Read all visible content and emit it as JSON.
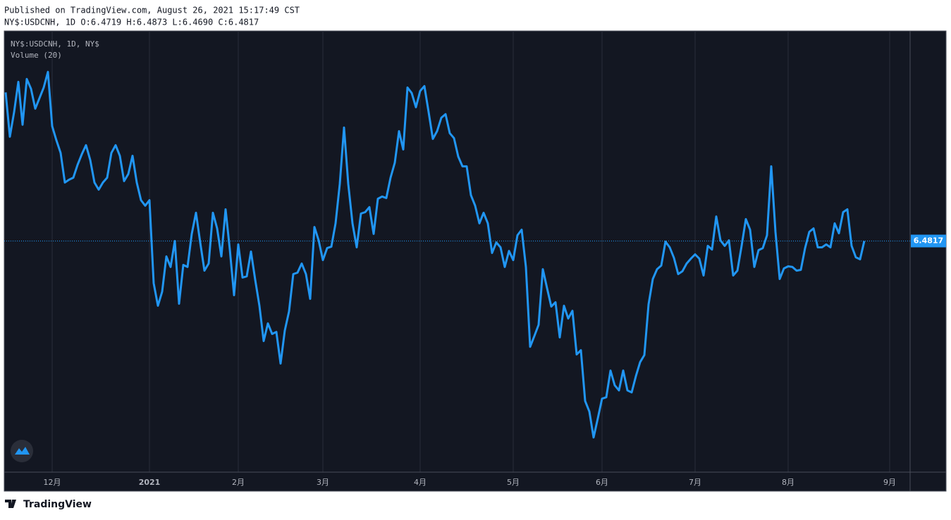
{
  "header": {
    "published": "Published on TradingView.com, August 26, 2021 15:17:49 CST",
    "ohlc": "NY$:USDCNH, 1D O:6.4719 H:6.4873 L:6.4690 C:6.4817"
  },
  "chart_data": {
    "type": "line",
    "indicator": "Volume (20)",
    "categories": [
      null,
      null,
      null,
      null,
      null,
      null,
      null,
      null,
      null,
      null,
      null,
      "12月",
      null,
      null,
      null,
      null,
      null,
      null,
      null,
      null,
      null,
      null,
      null,
      null,
      null,
      null,
      null,
      null,
      null,
      null,
      null,
      null,
      null,
      null,
      "2021",
      null,
      null,
      null,
      null,
      null,
      null,
      null,
      null,
      null,
      null,
      null,
      null,
      null,
      null,
      null,
      null,
      null,
      null,
      null,
      null,
      "2月",
      null,
      null,
      null,
      null,
      null,
      null,
      null,
      null,
      null,
      null,
      null,
      null,
      null,
      null,
      null,
      null,
      null,
      null,
      null,
      "3月",
      null,
      null,
      null,
      null,
      null,
      null,
      null,
      null,
      null,
      null,
      null,
      null,
      null,
      null,
      null,
      null,
      null,
      null,
      null,
      null,
      null,
      null,
      "4月",
      null,
      null,
      null,
      null,
      null,
      null,
      null,
      null,
      null,
      null,
      null,
      null,
      null,
      null,
      null,
      null,
      null,
      null,
      null,
      null,
      null,
      "5月",
      null,
      null,
      null,
      null,
      null,
      null,
      null,
      null,
      null,
      null,
      null,
      null,
      null,
      null,
      null,
      null,
      null,
      null,
      null,
      null,
      "6月",
      null,
      null,
      null,
      null,
      null,
      null,
      null,
      null,
      null,
      null,
      null,
      null,
      null,
      null,
      null,
      null,
      null,
      null,
      null,
      null,
      null,
      "7月",
      null,
      null,
      null,
      null,
      null,
      null,
      null,
      null,
      null,
      null,
      null,
      null,
      null,
      null,
      null,
      null,
      null,
      null,
      null,
      null,
      null,
      "8月",
      null,
      null,
      null,
      null,
      null,
      null,
      null,
      null,
      null,
      null,
      null,
      null,
      null,
      null,
      null,
      null,
      null,
      null,
      null,
      null,
      null,
      null,
      null,
      "9月"
    ],
    "series": [
      {
        "name": "NY$:USDCNH, 1D, NY$",
        "color": "#2196f3",
        "values": [
          6.576,
          6.5479,
          6.5635,
          6.5827,
          6.5555,
          6.5845,
          6.5783,
          6.5657,
          6.5724,
          6.5791,
          6.589,
          6.5546,
          6.5456,
          6.5376,
          6.5188,
          6.5206,
          6.5219,
          6.53,
          6.5367,
          6.5425,
          6.5331,
          6.5188,
          6.5143,
          6.5188,
          6.5219,
          6.5376,
          6.5425,
          6.5358,
          6.5197,
          6.5242,
          6.5358,
          6.5188,
          6.5076,
          6.5041,
          6.5076,
          6.4549,
          6.4406,
          6.4495,
          6.4719,
          6.4652,
          6.4817,
          6.4419,
          6.4665,
          6.4652,
          6.4862,
          6.4996,
          6.4808,
          6.4629,
          6.4674,
          6.4996,
          6.4897,
          6.4719,
          6.5018,
          6.4763,
          6.4473,
          6.4795,
          6.4585,
          6.4593,
          6.475,
          6.4571,
          6.4406,
          6.4182,
          6.4294,
          6.4227,
          6.424,
          6.4039,
          6.4249,
          6.437,
          6.4607,
          6.4616,
          6.4674,
          6.4607,
          6.445,
          6.4906,
          6.4821,
          6.4696,
          6.4772,
          6.4781,
          6.4929,
          6.5179,
          6.5537,
          6.5179,
          6.4929,
          6.4777,
          6.4991,
          6.5,
          6.5032,
          6.4862,
          6.5085,
          6.5099,
          6.509,
          6.5219,
          6.5313,
          6.5514,
          6.5398,
          6.5791,
          6.5756,
          6.5666,
          6.5769,
          6.58,
          6.5635,
          6.5465,
          6.5514,
          6.5599,
          6.5622,
          6.5501,
          6.547,
          6.5353,
          6.5291,
          6.5291,
          6.5108,
          6.5041,
          6.4929,
          6.4996,
          6.4929,
          6.4741,
          6.4808,
          6.4777,
          6.4652,
          6.4754,
          6.4696,
          6.4853,
          6.4889,
          6.4652,
          6.4146,
          6.4214,
          6.4285,
          6.4638,
          6.4518,
          6.4401,
          6.4428,
          6.4205,
          6.4406,
          6.4325,
          6.4374,
          6.4097,
          6.4124,
          6.3802,
          6.3735,
          6.357,
          6.3691,
          6.3816,
          6.3825,
          6.3995,
          6.3901,
          6.3869,
          6.3995,
          6.3869,
          6.3856,
          6.3959,
          6.4048,
          6.4093,
          6.4415,
          6.4576,
          6.4638,
          6.4661,
          6.4813,
          6.4777,
          6.471,
          6.4607,
          6.4625,
          6.4674,
          6.4705,
          6.4732,
          6.4705,
          6.4598,
          6.4786,
          6.4763,
          6.4973,
          6.4821,
          6.4786,
          6.4821,
          6.4598,
          6.4629,
          6.4786,
          6.4956,
          6.4889,
          6.4652,
          6.4759,
          6.4772,
          6.4853,
          6.5291,
          6.4875,
          6.4576,
          6.4643,
          6.4656,
          6.4652,
          6.4629,
          6.4634,
          6.4772,
          6.4875,
          6.4897,
          6.4777,
          6.4777,
          6.4795,
          6.4777,
          6.4929,
          6.4866,
          6.5,
          6.5018,
          6.4786,
          6.4714,
          6.4701,
          6.4817,
          null,
          null,
          null,
          null,
          null,
          null
        ]
      }
    ],
    "ylim": [
      6.335,
      6.615
    ],
    "grid": true
  },
  "footer": {
    "brand": "TradingView"
  }
}
